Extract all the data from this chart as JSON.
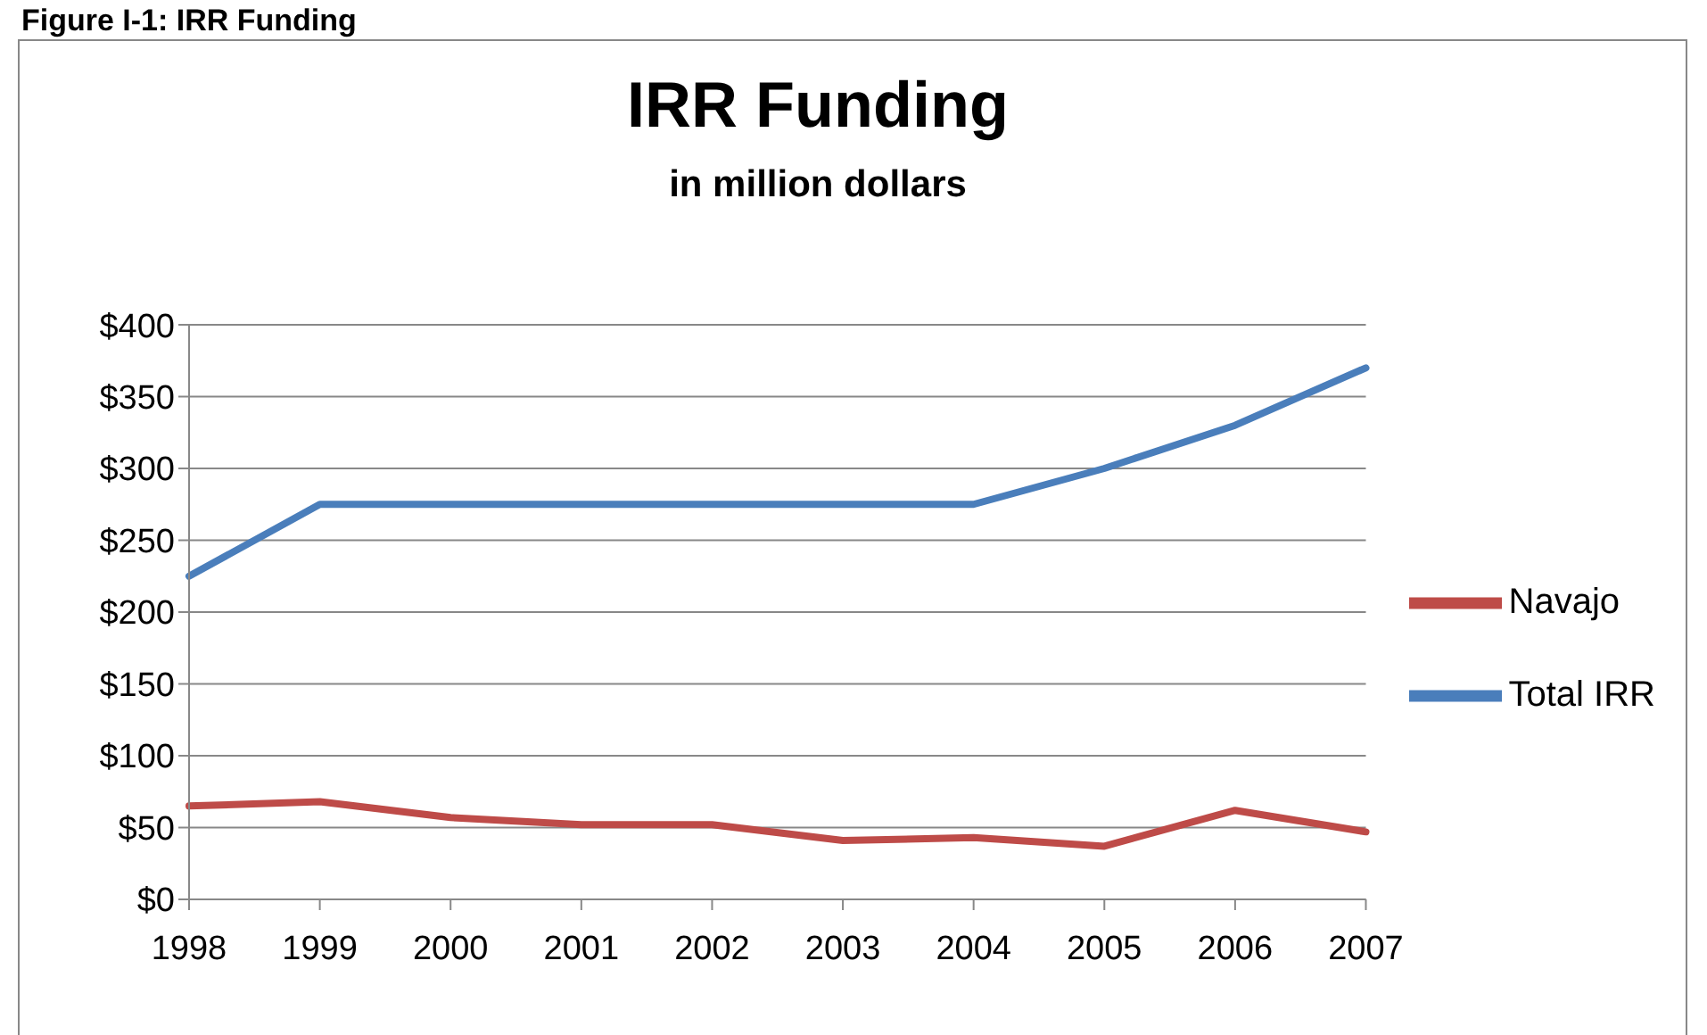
{
  "chart_data": {
    "type": "line",
    "title": "IRR Funding",
    "subtitle": "in million dollars",
    "annotations": [
      "Figure I-1: IRR Funding"
    ],
    "categories": [
      "1998",
      "1999",
      "2000",
      "2001",
      "2002",
      "2003",
      "2004",
      "2005",
      "2006",
      "2007"
    ],
    "series": [
      {
        "name": "Total IRR",
        "color": "#4a7ebb",
        "values": [
          225,
          275,
          275,
          275,
          275,
          275,
          275,
          300,
          330,
          370
        ]
      },
      {
        "name": "Navajo",
        "color": "#be4b48",
        "values": [
          65,
          68,
          57,
          52,
          52,
          41,
          43,
          37,
          62,
          47
        ]
      }
    ],
    "ylim": [
      0,
      400
    ],
    "yticks": [
      {
        "value": 0,
        "label": "$0"
      },
      {
        "value": 50,
        "label": "$50"
      },
      {
        "value": 100,
        "label": "$100"
      },
      {
        "value": 150,
        "label": "$150"
      },
      {
        "value": 200,
        "label": "$200"
      },
      {
        "value": 250,
        "label": "$250"
      },
      {
        "value": 300,
        "label": "$300"
      },
      {
        "value": 350,
        "label": "$350"
      },
      {
        "value": 400,
        "label": "$400"
      }
    ],
    "grid": "y",
    "legend": "right",
    "marker": "none",
    "line_style": "solid"
  }
}
